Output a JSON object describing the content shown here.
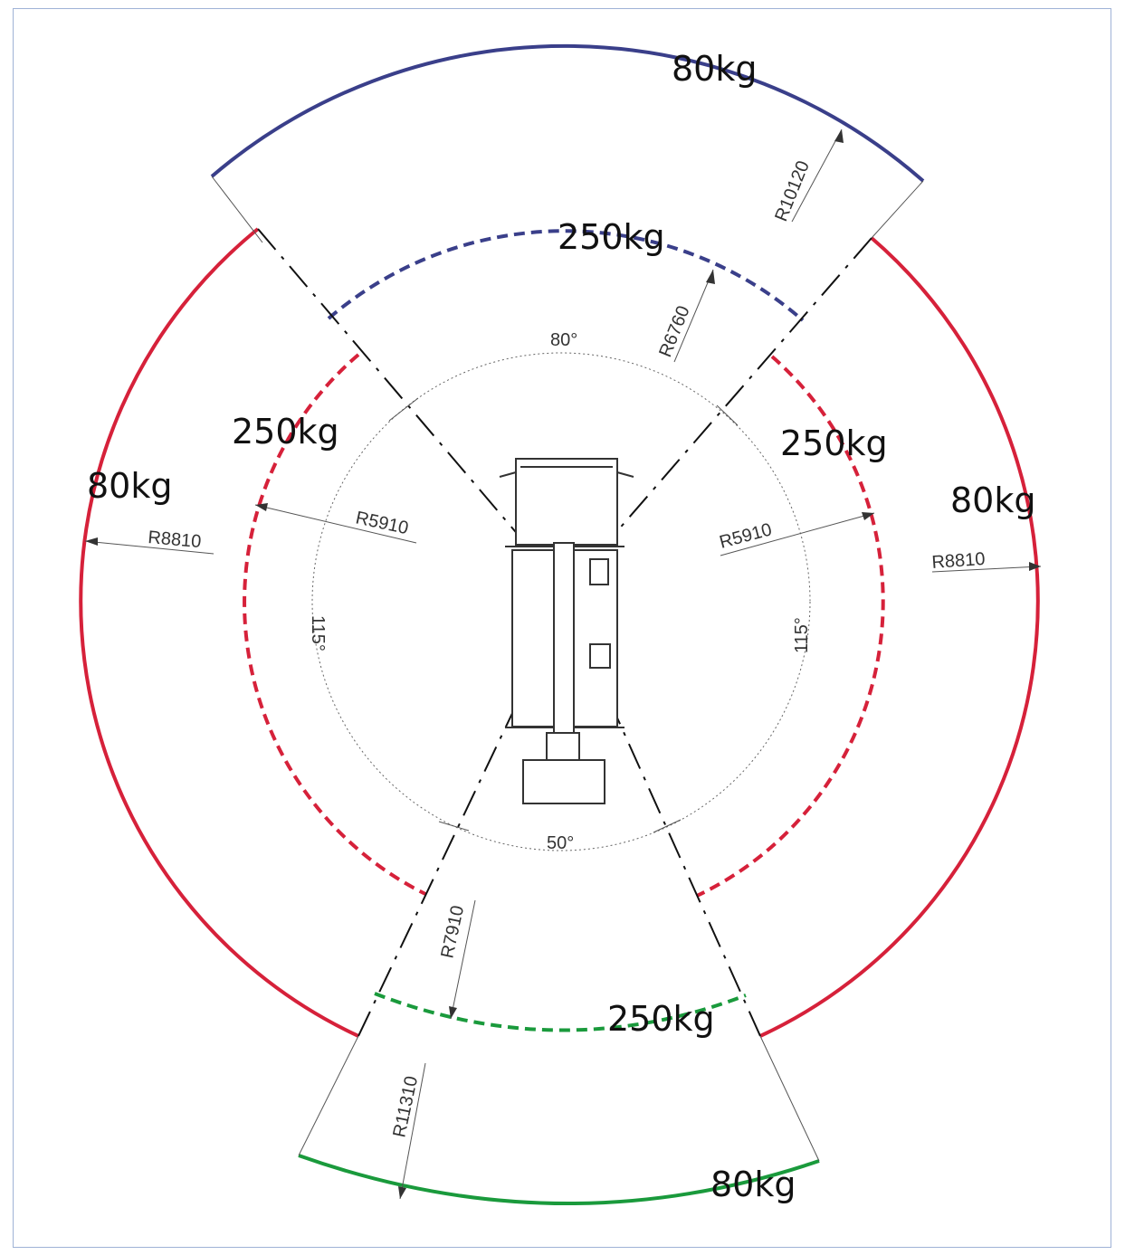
{
  "colors": {
    "red": "#d6213a",
    "blue": "#3a3f8a",
    "green": "#1a9a3c",
    "black": "#111111"
  },
  "labels": {
    "front_outer_load": "80kg",
    "front_inner_load": "250kg",
    "left_inner_load": "250kg",
    "right_inner_load": "250kg",
    "left_outer_load": "80kg",
    "right_outer_load": "80kg",
    "rear_inner_load": "250kg",
    "rear_outer_load": "80kg"
  },
  "dimensions": {
    "front_outer_radius": "R10120",
    "front_inner_radius": "R6760",
    "side_inner_radius_left": "R5910",
    "side_inner_radius_right": "R5910",
    "side_outer_radius_left": "R8810",
    "side_outer_radius_right": "R8810",
    "rear_inner_radius": "R7910",
    "rear_outer_radius": "R11310"
  },
  "angles": {
    "front": "80°",
    "rear": "50°",
    "left_side": "115°",
    "right_side": "115°"
  }
}
